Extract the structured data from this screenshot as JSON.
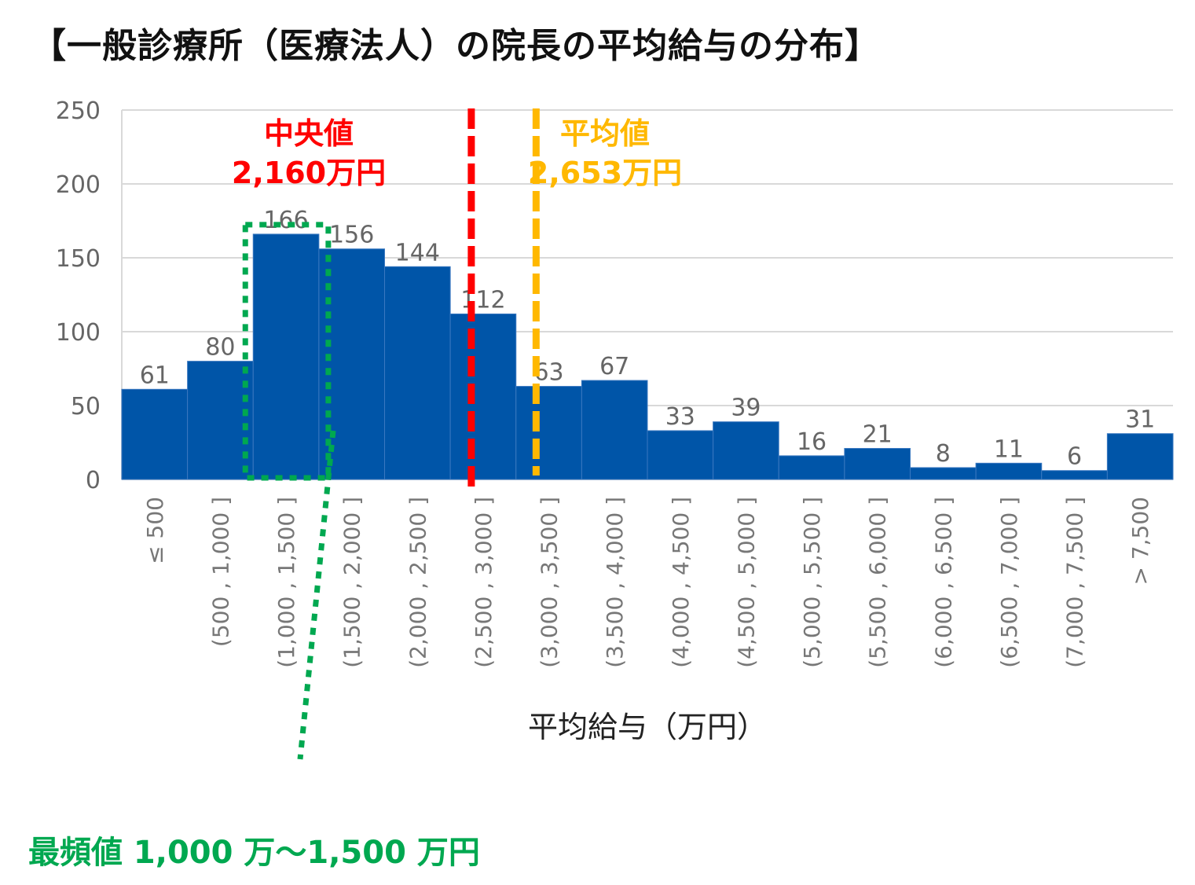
{
  "title": "【一般診療所（医療法人）の院長の平均給与の分布】",
  "mode_annotation": "最頻値  1,000 万～1,500 万円",
  "chart_data": {
    "type": "bar",
    "title": "【一般診療所（医療法人）の院長の平均給与の分布】",
    "xlabel": "平均給与（万円）",
    "ylabel": "",
    "ylim": [
      0,
      250
    ],
    "yticks": [
      0,
      50,
      100,
      150,
      200,
      250
    ],
    "grid": true,
    "categories": [
      "≤ 500",
      "(500 , 1,000 ]",
      "(1,000 , 1,500 ]",
      "(1,500 , 2,000 ]",
      "(2,000 , 2,500 ]",
      "(2,500 , 3,000 ]",
      "(3,000 , 3,500 ]",
      "(3,500 , 4,000 ]",
      "(4,000 , 4,500 ]",
      "(4,500 , 5,000 ]",
      "(5,000 , 5,500 ]",
      "(5,500 , 6,000 ]",
      "(6,000 , 6,500 ]",
      "(6,500 , 7,000 ]",
      "(7,000 , 7,500 ]",
      "> 7,500"
    ],
    "values": [
      61,
      80,
      166,
      156,
      144,
      112,
      63,
      67,
      33,
      39,
      16,
      21,
      8,
      11,
      6,
      31
    ],
    "bar_color": "#0055a8",
    "annotations": {
      "median": {
        "label": "中央値",
        "value_label": "2,160万円",
        "value": 2160,
        "color": "#ff0000"
      },
      "mean": {
        "label": "平均値",
        "value_label": "2,653万円",
        "value": 2653,
        "color": "#ffb800"
      },
      "mode": {
        "category_index": 2,
        "color": "#00a850"
      }
    }
  }
}
